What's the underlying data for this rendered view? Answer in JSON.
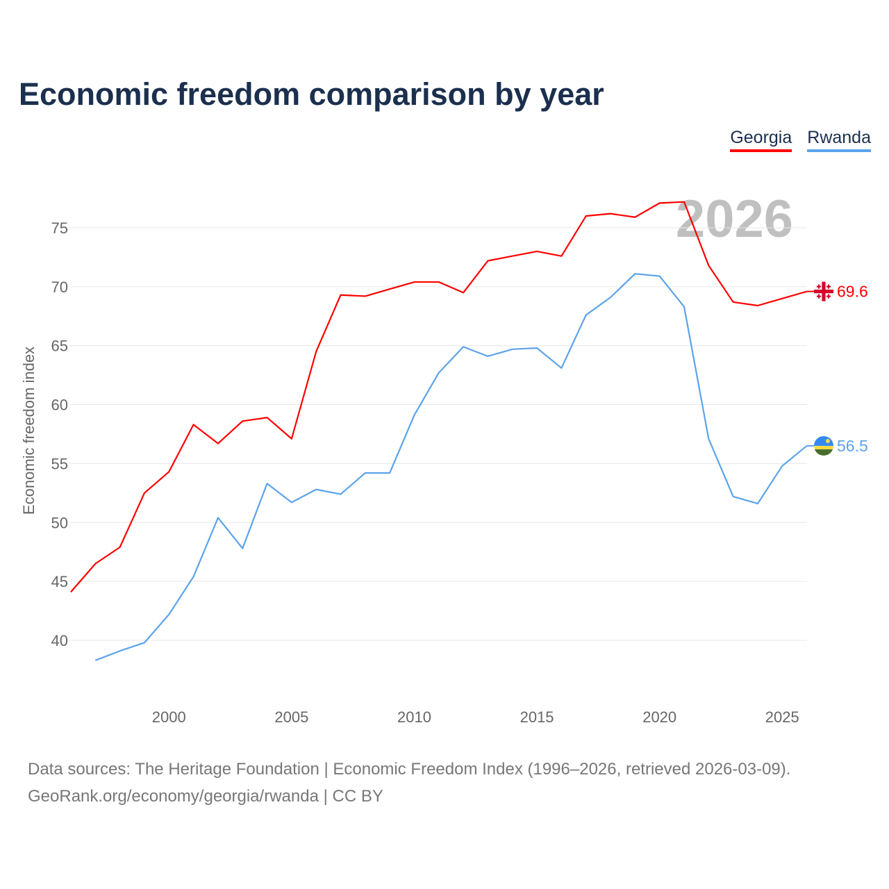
{
  "chart_data": {
    "type": "line",
    "title": "Economic freedom comparison by year",
    "ylabel": "Economic freedom index",
    "xlabel": "",
    "year_label": "2026",
    "ylim": [
      35,
      79
    ],
    "xlim": [
      1996,
      2026
    ],
    "yticks": [
      40,
      45,
      50,
      55,
      60,
      65,
      70,
      75
    ],
    "xticks": [
      2000,
      2005,
      2010,
      2015,
      2020,
      2025
    ],
    "grid": true,
    "legend_position": "top-right",
    "series": [
      {
        "name": "Georgia",
        "color": "#ff0000",
        "end_label": "69.6",
        "flag": "georgia-flag",
        "x": [
          1996,
          1997,
          1998,
          1999,
          2000,
          2001,
          2002,
          2003,
          2004,
          2005,
          2006,
          2007,
          2008,
          2009,
          2010,
          2011,
          2012,
          2013,
          2014,
          2015,
          2016,
          2017,
          2018,
          2019,
          2020,
          2021,
          2022,
          2023,
          2024,
          2025,
          2026
        ],
        "values": [
          44.1,
          46.5,
          47.9,
          52.5,
          54.3,
          58.3,
          56.7,
          58.6,
          58.9,
          57.1,
          64.5,
          69.3,
          69.2,
          69.8,
          70.4,
          70.4,
          69.5,
          72.2,
          72.6,
          73.0,
          72.6,
          76.0,
          76.2,
          75.9,
          77.1,
          77.2,
          71.8,
          68.7,
          68.4,
          69.0,
          69.6
        ]
      },
      {
        "name": "Rwanda",
        "color": "#5ba3ea",
        "end_label": "56.5",
        "flag": "rwanda-flag",
        "x": [
          1997,
          1998,
          1999,
          2000,
          2001,
          2002,
          2003,
          2004,
          2005,
          2006,
          2007,
          2008,
          2009,
          2010,
          2011,
          2012,
          2013,
          2014,
          2015,
          2016,
          2017,
          2018,
          2019,
          2020,
          2021,
          2022,
          2023,
          2024,
          2025,
          2026
        ],
        "values": [
          38.3,
          39.1,
          39.8,
          42.2,
          45.4,
          50.4,
          47.8,
          53.3,
          51.7,
          52.8,
          52.4,
          54.2,
          54.2,
          59.1,
          62.7,
          64.9,
          64.1,
          64.7,
          64.8,
          63.1,
          67.6,
          69.1,
          71.1,
          70.9,
          68.3,
          57.1,
          52.2,
          51.6,
          54.8,
          56.5
        ]
      }
    ]
  },
  "footer": {
    "line1": "Data sources: The Heritage Foundation | Economic Freedom Index (1996–2026, retrieved 2026-03-09).",
    "line2": "GeoRank.org/economy/georgia/rwanda | CC BY"
  }
}
